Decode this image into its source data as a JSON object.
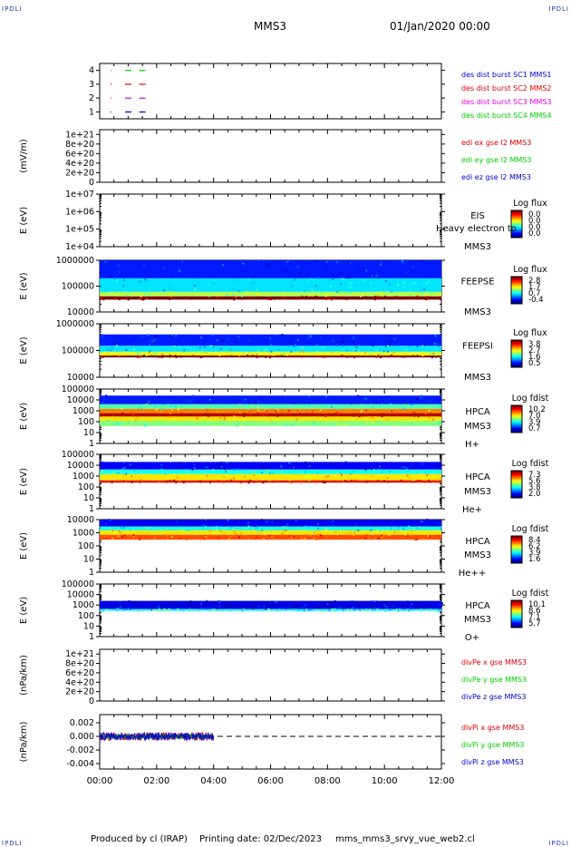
{
  "header": {
    "corner_label": "IPDLI",
    "title": "MMS3",
    "datetime": "01/Jan/2020 00:00"
  },
  "footer": {
    "produced_by": "Produced by cl (IRAP)",
    "printing_date": "Printing date: 02/Dec/2023",
    "script_name": "mms_mms3_srvy_vue_web2.cl"
  },
  "x_axis": {
    "ticks": [
      "00:00",
      "02:00",
      "04:00",
      "06:00",
      "08:00",
      "10:00",
      "12:00"
    ],
    "range_hours": [
      0,
      12
    ]
  },
  "colors": {
    "red": "#dd0000",
    "green": "#00cc00",
    "blue": "#0000cc",
    "magenta": "#dd00dd",
    "dashed": "#000000"
  },
  "chart_data": [
    {
      "id": "burst",
      "type": "scatter",
      "y_ticks": [
        "1",
        "2",
        "3",
        "4"
      ],
      "ylim": [
        0.5,
        4.5
      ],
      "series": [
        {
          "name": "des dist burst SC1 MMS1",
          "color": "blue",
          "y": 1
        },
        {
          "name": "des dist burst SC2 MMS2",
          "color": "red",
          "y": 3
        },
        {
          "name": "des dist burst SC3 MMS3",
          "color": "magenta",
          "y": 2
        },
        {
          "name": "des dist burst SC4 MMS4",
          "color": "green",
          "y": 4
        }
      ],
      "x_hours": [
        0.4,
        1.0,
        1.5
      ]
    },
    {
      "id": "edi",
      "type": "line",
      "ylabel": "(mV/m)",
      "y_ticks": [
        "0",
        "2e+20",
        "4e+20",
        "6e+20",
        "8e+20",
        "1e+21"
      ],
      "ylim": [
        0,
        1.1e+21
      ],
      "series": [
        {
          "name": "edi ex gse l2 MMS3",
          "color": "red"
        },
        {
          "name": "edi ey gse l2 MMS3",
          "color": "green"
        },
        {
          "name": "edi ez gse l2 MMS3",
          "color": "blue"
        }
      ],
      "zero_line": true
    },
    {
      "id": "eis",
      "type": "heatmap",
      "ylabel": "E (eV)",
      "y_ticks": [
        "1e+04",
        "1e+05",
        "1e+06",
        "1e+07"
      ],
      "ylim": [
        10000,
        10000000
      ],
      "log_y": true,
      "instrument": "EIS",
      "spacecraft": "MMS3",
      "overlay_text": "Heavy electron to",
      "colorbar": {
        "title": "Log flux",
        "ticks": [
          "0.0",
          "0.0",
          "0.0",
          "0.0"
        ]
      },
      "empty": true
    },
    {
      "id": "feepse",
      "type": "heatmap",
      "ylabel": "E (eV)",
      "y_ticks": [
        "10000",
        "100000",
        "1000000"
      ],
      "ylim": [
        10000,
        1000000
      ],
      "log_y": true,
      "instrument": "FEEPSE",
      "spacecraft": "MMS3",
      "colorbar": {
        "title": "Log flux",
        "ticks": [
          "2.8",
          "1.7",
          "0.7",
          "-0.4"
        ]
      },
      "coverage_hours": [
        0,
        12
      ],
      "band_levels": [
        {
          "e_range": [
            30000,
            40000
          ],
          "level": 1.0
        },
        {
          "e_range": [
            40000,
            60000
          ],
          "level": 0.55
        },
        {
          "e_range": [
            60000,
            200000
          ],
          "level": 0.35
        },
        {
          "e_range": [
            200000,
            1000000
          ],
          "level": 0.15
        }
      ]
    },
    {
      "id": "feepsi",
      "type": "heatmap",
      "ylabel": "E (eV)",
      "y_ticks": [
        "10000",
        "100000",
        "1000000"
      ],
      "ylim": [
        10000,
        1000000
      ],
      "log_y": true,
      "instrument": "FEEPSI",
      "spacecraft": "MMS3",
      "colorbar": {
        "title": "Log flux",
        "ticks": [
          "3.8",
          "2.7",
          "1.6",
          "0.5"
        ]
      },
      "coverage_hours": [
        0,
        12
      ],
      "band_levels": [
        {
          "e_range": [
            55000,
            65000
          ],
          "level": 1.0
        },
        {
          "e_range": [
            65000,
            90000
          ],
          "level": 0.6
        },
        {
          "e_range": [
            90000,
            150000
          ],
          "level": 0.35
        },
        {
          "e_range": [
            150000,
            400000
          ],
          "level": 0.15
        }
      ]
    },
    {
      "id": "hpca_h",
      "type": "heatmap",
      "ylabel": "E (eV)",
      "y_ticks": [
        "1",
        "10",
        "100",
        "1000",
        "10000",
        "100000"
      ],
      "ylim": [
        1,
        100000
      ],
      "log_y": true,
      "instrument": "HPCA",
      "spacecraft": "MMS3",
      "species": "H+",
      "colorbar": {
        "title": "Log fdist",
        "ticks": [
          "10.2",
          "7.0",
          "3.9",
          "0.7"
        ]
      },
      "coverage_hours": [
        0,
        12
      ],
      "band_levels": [
        {
          "e_range": [
            300,
            600
          ],
          "level": 0.95
        },
        {
          "e_range": [
            600,
            1500
          ],
          "level": 0.75
        },
        {
          "e_range": [
            120,
            300
          ],
          "level": 0.65
        },
        {
          "e_range": [
            1500,
            4000
          ],
          "level": 0.45
        },
        {
          "e_range": [
            40,
            120
          ],
          "level": 0.5
        },
        {
          "e_range": [
            4000,
            25000
          ],
          "level": 0.15
        }
      ]
    },
    {
      "id": "hpca_he",
      "type": "heatmap",
      "ylabel": "E (eV)",
      "y_ticks": [
        "1",
        "10",
        "100",
        "1000",
        "10000",
        "100000"
      ],
      "ylim": [
        1,
        100000
      ],
      "log_y": true,
      "instrument": "HPCA",
      "spacecraft": "MMS3",
      "species": "He+",
      "colorbar": {
        "title": "Log fdist",
        "ticks": [
          "7.3",
          "5.6",
          "3.8",
          "2.0"
        ]
      },
      "coverage_hours": [
        0,
        12
      ],
      "band_levels": [
        {
          "e_range": [
            250,
            400
          ],
          "level": 0.9
        },
        {
          "e_range": [
            400,
            1500
          ],
          "level": 0.65
        },
        {
          "e_range": [
            1500,
            4000
          ],
          "level": 0.4
        },
        {
          "e_range": [
            4000,
            20000
          ],
          "level": 0.12
        }
      ]
    },
    {
      "id": "hpca_hepp",
      "type": "heatmap",
      "ylabel": "E (eV)",
      "y_ticks": [
        "1",
        "10",
        "100",
        "1000",
        "10000"
      ],
      "ylim": [
        1,
        10000
      ],
      "log_y": true,
      "instrument": "HPCA",
      "spacecraft": "MMS3",
      "species": "He++",
      "colorbar": {
        "title": "Log fdist",
        "ticks": [
          "8.4",
          "6.2",
          "3.9",
          "1.6"
        ]
      },
      "coverage_hours": [
        0,
        12
      ],
      "band_levels": [
        {
          "e_range": [
            300,
            700
          ],
          "level": 0.8
        },
        {
          "e_range": [
            700,
            1500
          ],
          "level": 0.65
        },
        {
          "e_range": [
            1500,
            3000
          ],
          "level": 0.4
        },
        {
          "e_range": [
            3000,
            10000
          ],
          "level": 0.12
        }
      ]
    },
    {
      "id": "hpca_o",
      "type": "heatmap",
      "ylabel": "E (eV)",
      "y_ticks": [
        "1",
        "10",
        "100",
        "1000",
        "10000",
        "100000"
      ],
      "ylim": [
        1,
        100000
      ],
      "log_y": true,
      "instrument": "HPCA",
      "spacecraft": "MMS3",
      "species": "O+",
      "colorbar": {
        "title": "Log fdist",
        "ticks": [
          "10.1",
          "8.6",
          "7.1",
          "5.7"
        ]
      },
      "coverage_hours": [
        0,
        12
      ],
      "band_levels": [
        {
          "e_range": [
            280,
            420
          ],
          "level": 0.4
        },
        {
          "e_range": [
            420,
            2500
          ],
          "level": 0.1
        }
      ]
    },
    {
      "id": "divpe",
      "type": "line",
      "ylabel": "(nPa/km)",
      "y_ticks": [
        "0",
        "2e+20",
        "4e+20",
        "6e+20",
        "8e+20",
        "1e+21"
      ],
      "ylim": [
        0,
        1.1e+21
      ],
      "series": [
        {
          "name": "divPe x gse MMS3",
          "color": "red"
        },
        {
          "name": "divPe y gse MMS3",
          "color": "green"
        },
        {
          "name": "divPe z gse MMS3",
          "color": "blue"
        }
      ],
      "zero_line": true
    },
    {
      "id": "divpi",
      "type": "line",
      "ylabel": "(nPa/km)",
      "y_ticks": [
        "-0.004",
        "-0.002",
        "0.000",
        "0.002"
      ],
      "ylim": [
        -0.0048,
        0.0032
      ],
      "series": [
        {
          "name": "divPi x gse MMS3",
          "color": "red"
        },
        {
          "name": "divPi y gse MMS3",
          "color": "green"
        },
        {
          "name": "divPi z gse MMS3",
          "color": "blue"
        }
      ],
      "data_x_range_hours": [
        0,
        4
      ],
      "noise_amplitude": 0.0006,
      "zero_line": true
    }
  ]
}
